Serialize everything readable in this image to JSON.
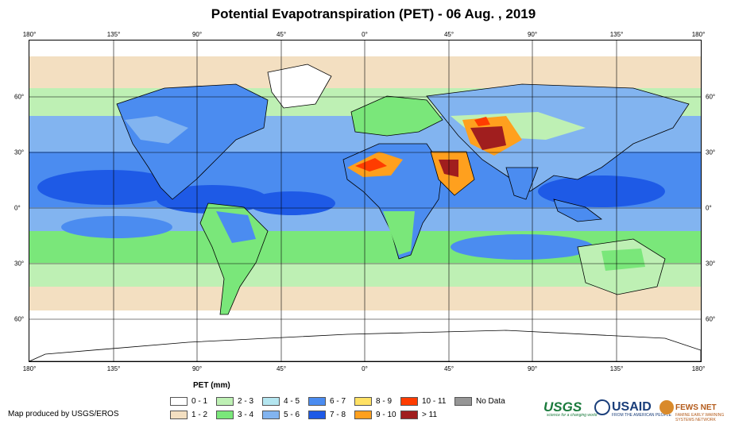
{
  "title": "Potential Evapotranspiration (PET) - 06 Aug. , 2019",
  "lon_ticks": [
    "180°",
    "135°",
    "90°",
    "45°",
    "0°",
    "45°",
    "90°",
    "135°",
    "180°"
  ],
  "lat_ticks": [
    "60°",
    "30°",
    "0°",
    "30°",
    "60°"
  ],
  "legend": {
    "title": "PET (mm)",
    "items": [
      {
        "label": "0 - 1",
        "color": "#ffffff"
      },
      {
        "label": "1 - 2",
        "color": "#f3dfc1"
      },
      {
        "label": "2 - 3",
        "color": "#bef0b4"
      },
      {
        "label": "3 - 4",
        "color": "#7ae77a"
      },
      {
        "label": "4 - 5",
        "color": "#b4e6f0"
      },
      {
        "label": "5 - 6",
        "color": "#82b4f0"
      },
      {
        "label": "6 - 7",
        "color": "#4b8cf0"
      },
      {
        "label": "7 - 8",
        "color": "#1e5ae6"
      },
      {
        "label": "8 - 9",
        "color": "#ffe164"
      },
      {
        "label": "9 - 10",
        "color": "#ffa01e"
      },
      {
        "label": "10 - 11",
        "color": "#ff3c00"
      },
      {
        "label": "> 11",
        "color": "#a01e1e"
      },
      {
        "label": "No Data",
        "color": "#969696"
      }
    ]
  },
  "credit": "Map produced by USGS/EROS",
  "logos": {
    "usgs": "USGS",
    "usgs_tagline": "science for a changing world",
    "usaid": "USAID",
    "usaid_tagline": "FROM THE AMERICAN PEOPLE",
    "fews": "FEWS NET",
    "fews_tagline": "FAMINE EARLY WARNING SYSTEMS NETWORK"
  }
}
